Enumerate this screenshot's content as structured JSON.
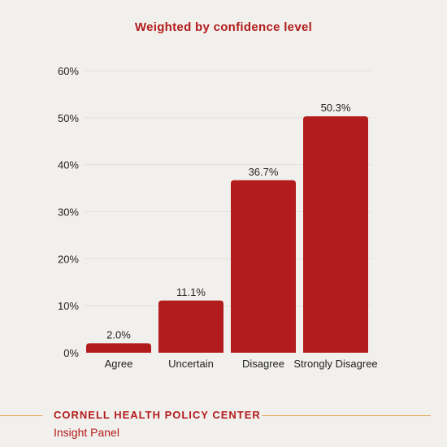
{
  "chart_data": {
    "type": "bar",
    "subtitle": "Weighted by confidence level",
    "categories": [
      "Agree",
      "Uncertain",
      "Disagree",
      "Strongly Disagree"
    ],
    "values": [
      2.0,
      11.1,
      36.7,
      50.3
    ],
    "value_labels": [
      "2.0%",
      "11.1%",
      "36.7%",
      "50.3%"
    ],
    "ylim": [
      0,
      60
    ],
    "yticks": [
      0,
      10,
      20,
      30,
      40,
      50,
      60
    ],
    "ytick_labels": [
      "0%",
      "10%",
      "20%",
      "30%",
      "40%",
      "50%",
      "60%"
    ],
    "grid": true,
    "bar_color": "#b21c1c"
  },
  "footer": {
    "organization": "CORNELL HEALTH POLICY CENTER",
    "subtitle": "Insight Panel",
    "accent_color": "#e0a24a"
  }
}
